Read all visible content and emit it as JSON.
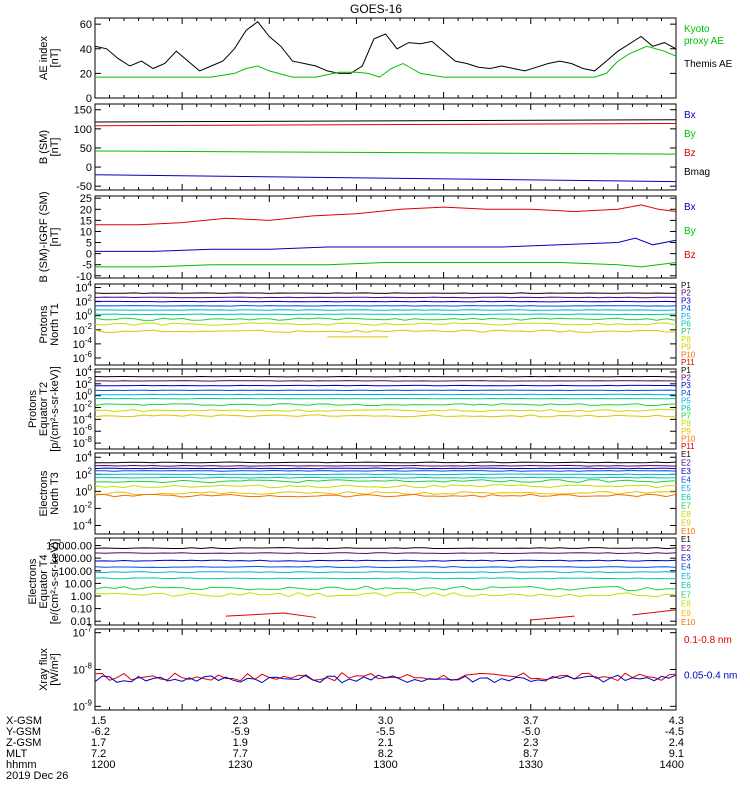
{
  "title": "GOES-16",
  "colors": {
    "black": "#000000",
    "red": "#e00000",
    "green": "#00c000",
    "blue": "#0000c0",
    "proton_palette": [
      "#000000",
      "#5a0078",
      "#0000c0",
      "#0050e0",
      "#00b0e0",
      "#00c8a0",
      "#20d040",
      "#c0e000",
      "#e8c000",
      "#f07000",
      "#e00000"
    ]
  },
  "x_time": {
    "start": 1200,
    "end": 1400
  },
  "tick_rows": {
    "labels": [
      "X-GSM",
      "Y-GSM",
      "Z-GSM",
      "MLT",
      "hhmm"
    ],
    "columns": [
      [
        "1.5",
        "-6.2",
        "1.7",
        "7.2",
        "1200"
      ],
      [
        "2.3",
        "-5.9",
        "1.9",
        "7.7",
        "1230"
      ],
      [
        "3.0",
        "-5.5",
        "2.1",
        "8.2",
        "1300"
      ],
      [
        "3.7",
        "-5.0",
        "2.3",
        "8.7",
        "1330"
      ],
      [
        "4.3",
        "-4.5",
        "2.4",
        "9.1",
        "1400"
      ]
    ],
    "date": "2019 Dec 26"
  },
  "chart_data": [
    {
      "type": "line",
      "ylabel": "AE index\n[nT]",
      "yticks": [
        "60",
        "40",
        "20",
        "0"
      ],
      "ylim": [
        0,
        65
      ],
      "legend": [
        "Kyoto\nproxy AE",
        "Themis AE"
      ],
      "legend_colors": [
        "#00c000",
        "#000000"
      ],
      "series": [
        {
          "name": "Themis AE",
          "color": "black",
          "x": [
            1200,
            1204,
            1208,
            1212,
            1216,
            1220,
            1224,
            1228,
            1232,
            1236,
            1240,
            1244,
            1248,
            1252,
            1256,
            1260,
            1264,
            1268,
            1272,
            1276,
            1280,
            1284,
            1288,
            1292,
            1296,
            1300,
            1304,
            1308,
            1312,
            1316,
            1320,
            1324,
            1328,
            1332,
            1336,
            1340,
            1344,
            1348,
            1352,
            1356,
            1360,
            1364,
            1368,
            1372,
            1376,
            1380,
            1384,
            1388,
            1392,
            1396,
            1400
          ],
          "y": [
            42,
            40,
            32,
            26,
            30,
            24,
            28,
            38,
            30,
            22,
            26,
            30,
            40,
            55,
            62,
            50,
            42,
            30,
            28,
            26,
            22,
            20,
            20,
            26,
            48,
            52,
            40,
            45,
            44,
            46,
            38,
            30,
            28,
            25,
            24,
            26,
            24,
            22,
            25,
            28,
            30,
            28,
            24,
            22,
            30,
            38,
            44,
            50,
            42,
            45,
            40
          ]
        },
        {
          "name": "Kyoto proxy AE",
          "color": "green",
          "x": [
            1200,
            1220,
            1230,
            1240,
            1248,
            1252,
            1256,
            1260,
            1268,
            1276,
            1284,
            1290,
            1294,
            1298,
            1302,
            1306,
            1312,
            1320,
            1340,
            1360,
            1372,
            1376,
            1380,
            1384,
            1390,
            1396,
            1400
          ],
          "y": [
            17,
            17,
            17,
            17,
            20,
            24,
            26,
            22,
            17,
            17,
            21,
            21,
            20,
            17,
            24,
            28,
            20,
            17,
            17,
            17,
            17,
            20,
            30,
            36,
            42,
            38,
            34
          ]
        }
      ]
    },
    {
      "type": "line",
      "ylabel": "B (SM)\n[nT]",
      "yticks": [
        "150",
        "100",
        "50",
        "0",
        "-50"
      ],
      "ylim": [
        -60,
        165
      ],
      "legend": [
        "Bx",
        "By",
        "Bz",
        "Bmag"
      ],
      "legend_colors": [
        "#0000c0",
        "#00c000",
        "#e00000",
        "#000000"
      ],
      "series": [
        {
          "name": "Bmag",
          "color": "black",
          "x": [
            1200,
            1400
          ],
          "y": [
            118,
            124
          ]
        },
        {
          "name": "Bz",
          "color": "red",
          "x": [
            1200,
            1400
          ],
          "y": [
            108,
            114
          ]
        },
        {
          "name": "By",
          "color": "green",
          "x": [
            1200,
            1400
          ],
          "y": [
            42,
            34
          ]
        },
        {
          "name": "Bx",
          "color": "blue",
          "x": [
            1200,
            1400
          ],
          "y": [
            -20,
            -38
          ]
        }
      ]
    },
    {
      "type": "line",
      "ylabel": "B (SM)-IGRF (SM)\n[nT]",
      "yticks": [
        "25",
        "20",
        "15",
        "10",
        "5",
        "0",
        "-5",
        "-10"
      ],
      "ylim": [
        -11,
        26
      ],
      "legend": [
        "Bx",
        "By",
        "Bz"
      ],
      "legend_colors": [
        "#0000c0",
        "#00c000",
        "#e00000"
      ],
      "series": [
        {
          "name": "Bz",
          "color": "red",
          "x": [
            1200,
            1215,
            1230,
            1245,
            1260,
            1275,
            1290,
            1305,
            1320,
            1335,
            1350,
            1365,
            1380,
            1388,
            1394,
            1400
          ],
          "y": [
            13,
            13,
            14,
            16,
            15,
            17,
            18,
            20,
            21,
            20,
            20,
            19,
            20,
            22,
            20,
            19
          ]
        },
        {
          "name": "Bx",
          "color": "blue",
          "x": [
            1200,
            1220,
            1240,
            1260,
            1280,
            1300,
            1320,
            1340,
            1360,
            1380,
            1386,
            1392,
            1400
          ],
          "y": [
            1,
            1,
            2,
            2,
            3,
            3,
            3,
            3,
            4,
            5,
            7,
            4,
            6
          ]
        },
        {
          "name": "By",
          "color": "green",
          "x": [
            1200,
            1220,
            1240,
            1260,
            1280,
            1300,
            1320,
            1340,
            1360,
            1380,
            1388,
            1400
          ],
          "y": [
            -6,
            -6,
            -5,
            -5,
            -5,
            -4,
            -4,
            -4,
            -4,
            -5,
            -6,
            -4
          ]
        }
      ]
    },
    {
      "type": "line",
      "ylabel": "Protons\nNorth T1",
      "log": true,
      "yticks": [
        "10^4",
        "10^2",
        "10^0",
        "10^-2",
        "10^-4",
        "10^-6"
      ],
      "ylim": [
        -7,
        4.5
      ],
      "legend": [
        "P1",
        "P2",
        "P3",
        "P4",
        "P5",
        "P6",
        "P7",
        "P8",
        "P9",
        "P10",
        "P11"
      ],
      "series_levels": [
        3.2,
        2.6,
        2.0,
        1.4,
        0.8,
        0.2,
        -0.5,
        -1.2,
        -2.2,
        -3.0,
        -3.6
      ],
      "gaps": [
        {
          "level": -3.0,
          "x": [
            1280,
            1301
          ]
        }
      ]
    },
    {
      "type": "line",
      "ylabel": "Protons\nEquator T2\n[p/(cm²-s-sr-keV)]",
      "log": true,
      "yticks": [
        "10^4",
        "10^2",
        "10^0",
        "10^-2",
        "10^-4",
        "10^-6",
        "10^-8"
      ],
      "ylim": [
        -9,
        4.5
      ],
      "legend": [
        "P1",
        "P2",
        "P3",
        "P4",
        "P5",
        "P6",
        "P7",
        "P8",
        "P9",
        "P10",
        "P11"
      ],
      "series_levels": [
        3.2,
        2.5,
        1.7,
        0.9,
        0.2,
        -0.5,
        -1.5,
        -2.5,
        -3.4,
        -4.4,
        -5.4
      ]
    },
    {
      "type": "line",
      "ylabel": "Electrons\nNorth T3",
      "log": true,
      "yticks": [
        "10^4",
        "10^2",
        "10^0",
        "10^-2",
        "10^-4"
      ],
      "ylim": [
        -5,
        4.5
      ],
      "legend": [
        "E1",
        "E2",
        "E3",
        "E4",
        "E5",
        "E6",
        "E7",
        "E8",
        "E9",
        "E10"
      ],
      "series_levels": [
        3.4,
        3.0,
        2.7,
        2.4,
        2.0,
        1.6,
        1.2,
        0.6,
        -0.2,
        -0.5
      ]
    },
    {
      "type": "line",
      "ylabel": "Electrons\nEquator T4\n[e/(cm²-s-sr-keV)]",
      "log": true,
      "yticks": [
        "10000.00",
        "1000.00",
        "100.00",
        "10.00",
        "1.00",
        "0.10",
        "0.01"
      ],
      "ylim": [
        -2.3,
        4.6
      ],
      "legend": [
        "E1",
        "E2",
        "E3",
        "E4",
        "E5",
        "E6",
        "E7",
        "E8",
        "E9",
        "E10"
      ],
      "series_levels": [
        3.8,
        3.4,
        2.8,
        2.3,
        1.9,
        1.4,
        0.6,
        0.1,
        -1.4,
        -1.9
      ]
    },
    {
      "type": "line",
      "ylabel": "Xray flux\n[W/m²]",
      "log": true,
      "yticks": [
        "10^-7",
        "10^-8",
        "10^-9"
      ],
      "ylim": [
        -9.1,
        -6.9
      ],
      "legend": [
        "0.1-0.8 nm",
        "0.05-0.4 nm"
      ],
      "legend_colors": [
        "#e00000",
        "#0000c0"
      ],
      "series": [
        {
          "name": "0.1-0.8 nm",
          "color": "red",
          "level": -8.2
        },
        {
          "name": "0.05-0.4 nm",
          "color": "blue",
          "level": -8.25
        }
      ]
    }
  ]
}
